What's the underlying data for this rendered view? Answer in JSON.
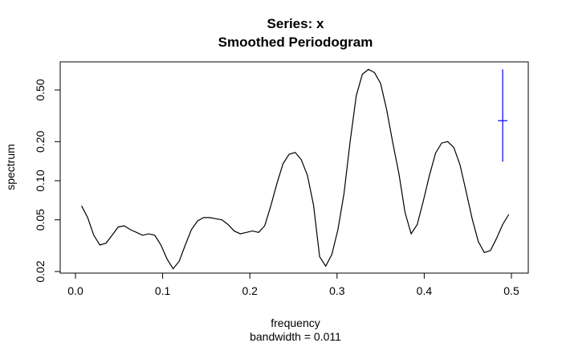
{
  "chart_data": {
    "type": "line",
    "title": "Series: x",
    "subtitle": "Smoothed Periodogram",
    "xlabel": "frequency",
    "xlabel_sub": "bandwidth = 0.011",
    "ylabel": "spectrum",
    "x_scale": "linear",
    "y_scale": "log",
    "xlim": [
      0.0,
      0.5
    ],
    "ylim": [
      0.02,
      0.8
    ],
    "x_ticks": [
      0.0,
      0.1,
      0.2,
      0.3,
      0.4,
      0.5
    ],
    "x_tick_labels": [
      "0.0",
      "0.1",
      "0.2",
      "0.3",
      "0.4",
      "0.5"
    ],
    "y_ticks": [
      0.02,
      0.05,
      0.1,
      0.2,
      0.5
    ],
    "y_tick_labels": [
      "0.02",
      "0.05",
      "0.10",
      "0.20",
      "0.50"
    ],
    "grid": false,
    "legend": "none",
    "series": [
      {
        "color": "#000000",
        "x": [
          0.007,
          0.014,
          0.021,
          0.028,
          0.035,
          0.042,
          0.049,
          0.056,
          0.063,
          0.07,
          0.077,
          0.084,
          0.091,
          0.098,
          0.105,
          0.112,
          0.119,
          0.126,
          0.133,
          0.14,
          0.147,
          0.154,
          0.161,
          0.168,
          0.175,
          0.182,
          0.189,
          0.196,
          0.203,
          0.21,
          0.217,
          0.224,
          0.231,
          0.238,
          0.245,
          0.252,
          0.259,
          0.266,
          0.273,
          0.28,
          0.287,
          0.294,
          0.301,
          0.308,
          0.315,
          0.322,
          0.329,
          0.336,
          0.343,
          0.35,
          0.357,
          0.364,
          0.371,
          0.378,
          0.385,
          0.392,
          0.399,
          0.406,
          0.413,
          0.42,
          0.427,
          0.434,
          0.441,
          0.448,
          0.455,
          0.462,
          0.469,
          0.476,
          0.483,
          0.49,
          0.497
        ],
        "y": [
          0.064,
          0.052,
          0.038,
          0.032,
          0.033,
          0.038,
          0.044,
          0.045,
          0.042,
          0.04,
          0.038,
          0.039,
          0.038,
          0.032,
          0.025,
          0.021,
          0.024,
          0.032,
          0.042,
          0.049,
          0.052,
          0.052,
          0.051,
          0.05,
          0.046,
          0.041,
          0.039,
          0.04,
          0.041,
          0.04,
          0.045,
          0.064,
          0.095,
          0.135,
          0.16,
          0.165,
          0.145,
          0.11,
          0.065,
          0.026,
          0.022,
          0.027,
          0.042,
          0.08,
          0.2,
          0.45,
          0.66,
          0.72,
          0.68,
          0.56,
          0.35,
          0.195,
          0.113,
          0.057,
          0.039,
          0.046,
          0.07,
          0.11,
          0.163,
          0.195,
          0.2,
          0.18,
          0.133,
          0.083,
          0.051,
          0.034,
          0.028,
          0.029,
          0.036,
          0.046,
          0.055
        ]
      }
    ],
    "annotations": [
      {
        "type": "bandwidth-ci-marker",
        "color": "#0000ff",
        "x": 0.49,
        "y_center": 0.29,
        "y_lower": 0.14,
        "y_upper": 0.72,
        "bandwidth": 0.011
      }
    ]
  }
}
